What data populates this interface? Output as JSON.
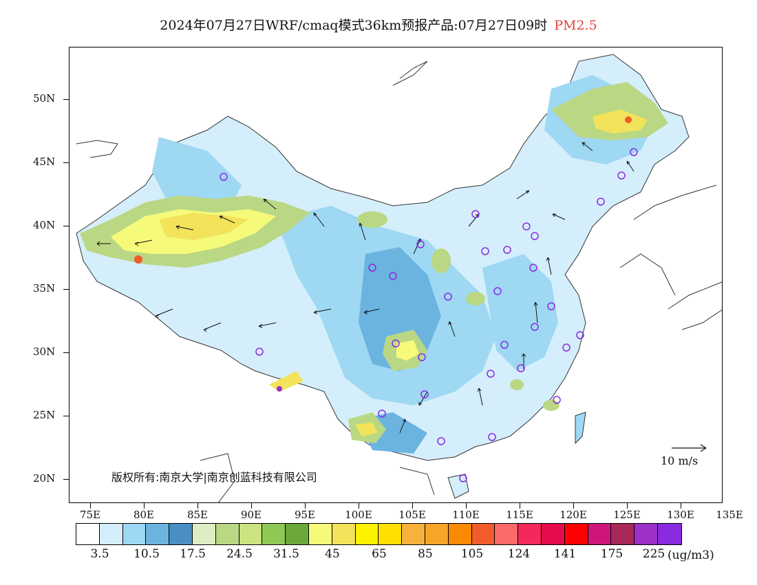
{
  "title": {
    "main": "2024年07月27日WRF/cmaq模式36km预报产品:07月27日09时",
    "species": "PM2.5",
    "species_color": "#e8403c"
  },
  "axes": {
    "lat_labels": [
      "50N",
      "45N",
      "40N",
      "35N",
      "30N",
      "25N",
      "20N"
    ],
    "lon_labels": [
      "75E",
      "80E",
      "85E",
      "90E",
      "95E",
      "100E",
      "105E",
      "110E",
      "115E",
      "120E",
      "125E",
      "130E",
      "135E"
    ]
  },
  "copyright": "版权所有:南京大学|南京创蓝科技有限公司",
  "wind_reference": {
    "label": "10 m/s"
  },
  "colorbar": {
    "colors": [
      "#ffffff",
      "#d4eefb",
      "#9ed8f3",
      "#6cb4e0",
      "#4a8fc4",
      "#deeec2",
      "#bad884",
      "#cbe380",
      "#90c855",
      "#6aa83a",
      "#f5fa7a",
      "#f3e35a",
      "#fff200",
      "#ffe000",
      "#f8b23c",
      "#f7a428",
      "#fb8a00",
      "#f05c2c",
      "#fc6a6a",
      "#f4285a",
      "#e60b4d",
      "#ff0000",
      "#d0157a",
      "#a8285a",
      "#9c30c8",
      "#8a2be2"
    ],
    "labels": [
      "3.5",
      "10.5",
      "17.5",
      "24.5",
      "31.5",
      "45",
      "65",
      "85",
      "105",
      "124",
      "141",
      "175",
      "225"
    ],
    "unit": "(ug/m3)"
  }
}
